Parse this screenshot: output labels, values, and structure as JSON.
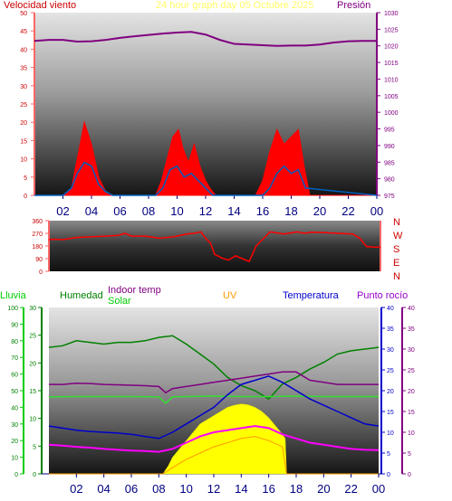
{
  "colors": {
    "wind_title": "#cc0000",
    "date_title": "#ffff66",
    "pressure": "#800080",
    "wind_speed": "#ff0000",
    "wind_gust": "#0060c0",
    "wind_dir": "#ff0000",
    "rain": "#00cc00",
    "humidity": "#008000",
    "indoor_temp": "#800080",
    "solar": "#ffff00",
    "solar_title": "#00cc00",
    "uv": "#ff9900",
    "uv_title": "#ff9900",
    "temperature": "#0000cc",
    "dewpoint": "#ff00ff",
    "dewpoint_title": "#9900cc",
    "hours": "#000080",
    "dir_letters": "#cc0000"
  },
  "chart_data": [
    {
      "type": "line",
      "title": "24 hour graph day   05 Octubre 2025",
      "y_left_label": "Velocidad viento",
      "y_right_label": "Presión",
      "ylim_left": [
        0,
        50
      ],
      "yticks_left": [
        "0",
        "5",
        "10",
        "15",
        "20",
        "25",
        "30",
        "35",
        "40",
        "45",
        "50"
      ],
      "ylim_right": [
        975,
        1030
      ],
      "yticks_right": [
        "975",
        "980",
        "985",
        "990",
        "995",
        "1000",
        "1005",
        "1010",
        "1015",
        "1020",
        "1025",
        "1030"
      ],
      "x_ticks": [
        "02",
        "04",
        "06",
        "08",
        "10",
        "12",
        "14",
        "16",
        "18",
        "20",
        "22",
        "00"
      ],
      "grid": false,
      "series": [
        {
          "name": "Presión",
          "x": [
            0,
            1,
            2,
            3,
            4,
            5,
            6,
            7,
            8,
            9,
            10,
            11,
            12,
            13,
            14,
            15,
            16,
            17,
            18,
            19,
            20,
            21,
            22,
            23,
            24
          ],
          "values": [
            1021.5,
            1021.8,
            1021.8,
            1021.3,
            1021.4,
            1021.8,
            1022.4,
            1022.9,
            1023.3,
            1023.7,
            1024.0,
            1024.2,
            1023.4,
            1021.8,
            1020.6,
            1020.4,
            1020.2,
            1020.0,
            1020.1,
            1020.1,
            1020.4,
            1021.0,
            1021.4,
            1021.5,
            1021.5
          ]
        },
        {
          "name": "Velocidad viento",
          "x": [
            0,
            2,
            2.6,
            3.0,
            3.5,
            4.0,
            4.5,
            5.0,
            5.5,
            5.7,
            8.5,
            8.9,
            9.3,
            9.7,
            10.1,
            10.4,
            10.8,
            11.2,
            11.6,
            12.0,
            12.3,
            12.7,
            13.5,
            14.5,
            15.5,
            16.0,
            16.5,
            17.0,
            17.5,
            18.0,
            18.5,
            18.9,
            19.3,
            24
          ],
          "values": [
            0,
            0,
            2,
            10,
            20,
            14,
            5,
            1,
            0,
            0,
            0,
            4,
            10,
            16,
            18,
            13,
            9,
            14,
            8,
            4,
            2,
            0,
            0,
            0,
            0,
            4,
            12,
            18,
            14,
            16,
            18,
            8,
            0,
            0
          ]
        },
        {
          "name": "Ráfaga",
          "x": [
            0,
            2,
            2.6,
            3.0,
            3.5,
            4.0,
            4.5,
            5.0,
            5.5,
            8.5,
            9.0,
            9.5,
            10.0,
            10.5,
            11.0,
            11.5,
            12.0,
            12.5,
            16.0,
            16.5,
            17.0,
            17.5,
            18.0,
            18.5,
            19.0,
            24
          ],
          "values": [
            0,
            0,
            2,
            6,
            9,
            8,
            3,
            1,
            0,
            0,
            2,
            7,
            8,
            5,
            6,
            4,
            2,
            0,
            0,
            2,
            6,
            8,
            6,
            7,
            2,
            0
          ]
        }
      ]
    },
    {
      "type": "line",
      "title": "",
      "ylim": [
        0,
        360
      ],
      "yticks": [
        "0",
        "90",
        "180",
        "270",
        "360"
      ],
      "direction_letters": [
        "N",
        "W",
        "S",
        "E",
        "N"
      ],
      "series": [
        {
          "name": "Dirección viento",
          "x": [
            0,
            0.5,
            1,
            2,
            3,
            4,
            5,
            5.5,
            6,
            7,
            8,
            9,
            10,
            10.5,
            11,
            11.3,
            11.7,
            12,
            12.5,
            13,
            13.5,
            14,
            14.5,
            15,
            15.5,
            16,
            17,
            18,
            18.5,
            19,
            20,
            21,
            22,
            22.5,
            23,
            24
          ],
          "values": [
            225,
            228,
            225,
            240,
            245,
            250,
            255,
            270,
            250,
            250,
            235,
            245,
            265,
            270,
            280,
            240,
            200,
            120,
            95,
            80,
            110,
            90,
            70,
            180,
            230,
            280,
            265,
            280,
            270,
            278,
            275,
            270,
            265,
            235,
            175,
            170
          ]
        }
      ]
    },
    {
      "type": "line",
      "labels": {
        "rain": "Lluvia",
        "humidity": "Humedad",
        "indoor_temp": "Indoor temp",
        "solar": "Solar",
        "uv": "UV",
        "temperature": "Temperatura",
        "dewpoint": "Punto rocío"
      },
      "rain_ticks": [
        "0",
        "10",
        "20",
        "30",
        "40",
        "50",
        "60",
        "70",
        "80",
        "90",
        "100"
      ],
      "hum_ticks": [
        "0",
        "5",
        "10",
        "15",
        "20",
        "25",
        "30"
      ],
      "temp_ticks": [
        "0",
        "5",
        "10",
        "15",
        "20",
        "25",
        "30",
        "35",
        "40"
      ],
      "temp_ticks_right": [
        "0",
        "5",
        "10",
        "15",
        "20",
        "25",
        "30",
        "35",
        "40"
      ],
      "ylim_temp": [
        0,
        40
      ],
      "x_ticks": [
        "02",
        "04",
        "06",
        "08",
        "10",
        "12",
        "14",
        "16",
        "18",
        "20",
        "22",
        "00"
      ],
      "series": [
        {
          "name": "Humedad",
          "x": [
            0,
            1,
            2,
            3,
            4,
            5,
            6,
            7,
            8,
            9,
            10,
            11,
            12,
            13,
            14,
            15,
            16,
            17,
            18,
            19,
            20,
            21,
            22,
            23,
            24
          ],
          "values": [
            76,
            77,
            80,
            79,
            78,
            79,
            79,
            80,
            82,
            83,
            78,
            72,
            66,
            58,
            53,
            50,
            45,
            54,
            58,
            63,
            67,
            72,
            74,
            75,
            76
          ]
        },
        {
          "name": "Indoor temp",
          "x": [
            0,
            1,
            2,
            3,
            4,
            5,
            6,
            7,
            8,
            8.5,
            9,
            10,
            11,
            12,
            13,
            14,
            15,
            16,
            17,
            18,
            19,
            20,
            21,
            22,
            23,
            24
          ],
          "values": [
            21.5,
            21.5,
            21.8,
            21.7,
            21.5,
            21.4,
            21.3,
            21.2,
            21.0,
            19.5,
            20.5,
            21.0,
            21.5,
            22.0,
            22.5,
            23.0,
            23.5,
            24.0,
            24.5,
            24.5,
            22.5,
            22.0,
            21.5,
            21.5,
            21.5,
            21.5
          ]
        },
        {
          "name": "Interior",
          "x": [
            0,
            2,
            4,
            6,
            8,
            8.5,
            9,
            10,
            12,
            14,
            16,
            18,
            20,
            22,
            24
          ],
          "values": [
            18.5,
            18.6,
            18.6,
            18.6,
            18.5,
            17.0,
            18.5,
            18.6,
            18.7,
            18.6,
            18.6,
            18.7,
            18.6,
            18.6,
            18.6
          ]
        },
        {
          "name": "Temperatura",
          "x": [
            0,
            1,
            2,
            3,
            4,
            5,
            6,
            7,
            8,
            9,
            10,
            11,
            12,
            13,
            14,
            15,
            16,
            17,
            18,
            19,
            20,
            21,
            22,
            23,
            24
          ],
          "values": [
            11.5,
            11.0,
            10.5,
            10.2,
            10.0,
            9.8,
            9.5,
            9.0,
            8.5,
            10.0,
            12.0,
            14.0,
            16.0,
            19.0,
            21.5,
            22.5,
            23.5,
            22.0,
            20.0,
            18.0,
            16.5,
            15.0,
            13.5,
            12.0,
            11.5
          ]
        },
        {
          "name": "Punto rocío",
          "x": [
            0,
            1,
            2,
            3,
            4,
            5,
            6,
            7,
            8,
            9,
            10,
            11,
            12,
            13,
            14,
            15,
            16,
            17,
            18,
            19,
            20,
            21,
            22,
            23,
            24
          ],
          "values": [
            7.0,
            6.8,
            6.5,
            6.3,
            6.0,
            5.8,
            5.6,
            5.5,
            5.3,
            6.0,
            7.5,
            9.0,
            10.0,
            10.5,
            11.0,
            11.5,
            11.0,
            9.5,
            8.5,
            7.5,
            7.0,
            6.5,
            6.0,
            5.8,
            5.7
          ]
        },
        {
          "name": "UV",
          "x": [
            0,
            8.3,
            9,
            10,
            11,
            12,
            13,
            14,
            15,
            16,
            17,
            17.3,
            24
          ],
          "values": [
            0,
            0,
            1.5,
            3.5,
            5.0,
            6.5,
            7.5,
            8.5,
            9.0,
            8.0,
            6.5,
            0,
            0
          ]
        },
        {
          "name": "Solar",
          "x": [
            0,
            8.3,
            8.7,
            9,
            9.5,
            10,
            10.5,
            11,
            11.5,
            12,
            12.5,
            13,
            13.5,
            14,
            14.5,
            15,
            15.5,
            16,
            16.5,
            17,
            17.2,
            17.3,
            24
          ],
          "values": [
            0,
            0,
            2,
            4,
            6,
            8,
            10,
            12,
            13,
            14,
            15,
            16,
            16.5,
            16.8,
            16.6,
            16.0,
            15.0,
            13.5,
            11.5,
            9.5,
            8.5,
            0,
            0
          ]
        }
      ]
    }
  ]
}
